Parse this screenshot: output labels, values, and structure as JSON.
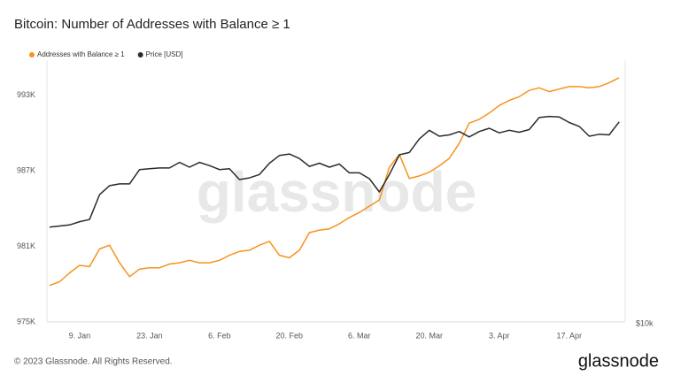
{
  "chart_data": {
    "type": "line",
    "title": "Bitcoin: Number of Addresses with Balance ≥ 1",
    "watermark": "glassnode",
    "copyright": "© 2023 Glassnode. All Rights Reserved.",
    "brand": "glassnode",
    "x": [
      "3. Jan",
      "5. Jan",
      "7. Jan",
      "9. Jan",
      "11. Jan",
      "13. Jan",
      "15. Jan",
      "17. Jan",
      "19. Jan",
      "21. Jan",
      "23. Jan",
      "25. Jan",
      "27. Jan",
      "29. Jan",
      "31. Jan",
      "2. Feb",
      "4. Feb",
      "6. Feb",
      "8. Feb",
      "10. Feb",
      "12. Feb",
      "14. Feb",
      "16. Feb",
      "18. Feb",
      "20. Feb",
      "22. Feb",
      "24. Feb",
      "26. Feb",
      "28. Feb",
      "2. Mar",
      "4. Mar",
      "6. Mar",
      "8. Mar",
      "10. Mar",
      "12. Mar",
      "14. Mar",
      "16. Mar",
      "18. Mar",
      "20. Mar",
      "22. Mar",
      "24. Mar",
      "26. Mar",
      "28. Mar",
      "30. Mar",
      "1. Apr",
      "3. Apr",
      "5. Apr",
      "7. Apr",
      "9. Apr",
      "11. Apr",
      "13. Apr",
      "15. Apr",
      "17. Apr",
      "19. Apr",
      "21. Apr",
      "23. Apr",
      "25. Apr",
      "27. Apr"
    ],
    "xticks": [
      "9. Jan",
      "23. Jan",
      "6. Feb",
      "20. Feb",
      "6. Mar",
      "20. Mar",
      "3. Apr",
      "17. Apr"
    ],
    "series": [
      {
        "name": "Addresses with Balance ≥ 1",
        "color": "#f7931a",
        "values": [
          977900,
          978200,
          978900,
          979500,
          979400,
          980800,
          981100,
          979700,
          978600,
          979200,
          979300,
          979300,
          979600,
          979700,
          979900,
          979700,
          979700,
          979900,
          980300,
          980600,
          980700,
          981100,
          981400,
          980300,
          980100,
          980700,
          982100,
          982300,
          982400,
          982800,
          983300,
          983700,
          984200,
          984700,
          987300,
          988300,
          986400,
          986600,
          986900,
          987400,
          988000,
          989200,
          990800,
          991100,
          991600,
          992200,
          992600,
          992900,
          993400,
          993600,
          993300,
          993500,
          993700,
          993700,
          993600,
          993700,
          994000,
          994400
        ]
      },
      {
        "name": "Price [USD]",
        "color": "#2b2b2b",
        "axis": "y2",
        "values": [
          16700,
          16800,
          16900,
          17200,
          17400,
          19900,
          20900,
          21100,
          21100,
          22800,
          22900,
          23000,
          23000,
          23700,
          23100,
          23700,
          23300,
          22800,
          22900,
          21600,
          21800,
          22200,
          23600,
          24600,
          24800,
          24200,
          23200,
          23600,
          23100,
          23500,
          22400,
          22400,
          21700,
          20200,
          22200,
          24700,
          25000,
          26900,
          28200,
          27300,
          27500,
          28000,
          27200,
          28000,
          28500,
          27800,
          28200,
          27900,
          28300,
          30200,
          30400,
          30300,
          29400,
          28800,
          27300,
          27600,
          27500,
          29500
        ]
      }
    ],
    "ylim": [
      975000,
      995800
    ],
    "yticks": [
      {
        "value": 975000,
        "label": "975K"
      },
      {
        "value": 981000,
        "label": "981K"
      },
      {
        "value": 987000,
        "label": "987K"
      },
      {
        "value": 993000,
        "label": "993K"
      }
    ],
    "y2lim": [
      10000,
      41200
    ],
    "y2scale": "log",
    "y2ticks": [
      {
        "value": 10000,
        "label": "$10k"
      }
    ],
    "legend": "top-left"
  }
}
